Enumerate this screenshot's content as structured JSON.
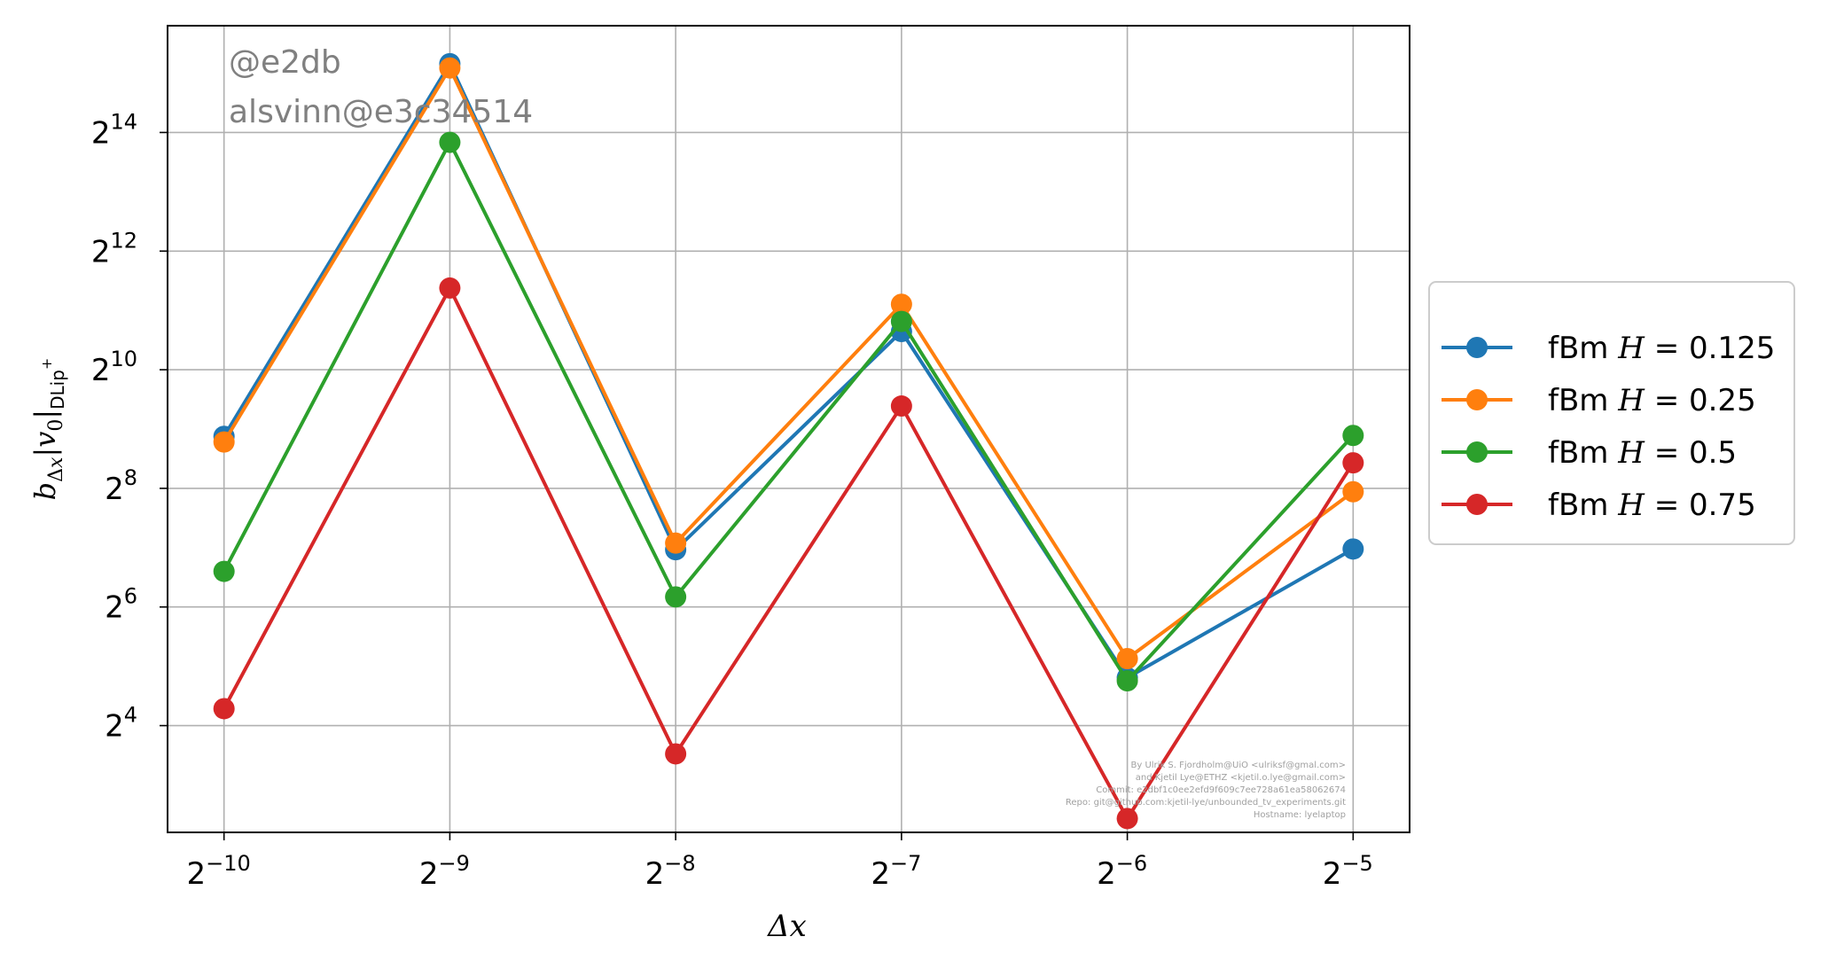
{
  "chart_data": {
    "type": "line",
    "xscale": "log2",
    "yscale": "log2",
    "xlabel": "Δx",
    "ylabel": "b_Δx|v0|DLip+",
    "x": [
      0.0009765625,
      0.001953125,
      0.00390625,
      0.0078125,
      0.015625,
      0.03125
    ],
    "x_tick_exponents": [
      "-10",
      "-9",
      "-8",
      "-7",
      "-6",
      "-5"
    ],
    "y_tick_exponents": [
      "4",
      "6",
      "8",
      "10",
      "12",
      "14"
    ],
    "xlim_log2": [
      -10.25,
      -4.75
    ],
    "ylim_log2": [
      2.2,
      15.8
    ],
    "grid": true,
    "legend_placement": "outside-right",
    "series": [
      {
        "name": "fBm H = 0.125",
        "name_prefix": "fBm ",
        "name_var": "H",
        "name_value": "= 0.125",
        "color": "#1f77b4",
        "values": [
          470,
          36600,
          125,
          1600,
          28,
          126
        ]
      },
      {
        "name": "fBm H = 0.25",
        "name_prefix": "fBm ",
        "name_var": "H",
        "name_value": "= 0.25",
        "color": "#ff7f0e",
        "values": [
          440,
          34800,
          135,
          2200,
          35,
          246
        ]
      },
      {
        "name": "fBm H = 0.5",
        "name_prefix": "fBm ",
        "name_var": "H",
        "name_value": "= 0.5",
        "color": "#2ca02c",
        "values": [
          97,
          14600,
          72,
          1800,
          27,
          475
        ]
      },
      {
        "name": "fBm H = 0.75",
        "name_prefix": "fBm ",
        "name_var": "H",
        "name_value": "= 0.75",
        "color": "#d62728",
        "values": [
          19.5,
          2660,
          11.5,
          670,
          5.4,
          345
        ]
      }
    ]
  },
  "watermark": {
    "line1": "@e2db",
    "line2": "alsvinn@e3c34514"
  },
  "credits": [
    "By Ulrik S. Fjordholm@UiO <ulriksf@gmal.com>",
    "and Kjetil Lye@ETHZ <kjetil.o.lye@gmail.com>",
    "Commit: e2dbf1c0ee2efd9f609c7ee728a61ea58062674",
    "Repo: git@github.com:kjetil-lye/unbounded_tv_experiments.git",
    "Hostname: lyelaptop"
  ]
}
